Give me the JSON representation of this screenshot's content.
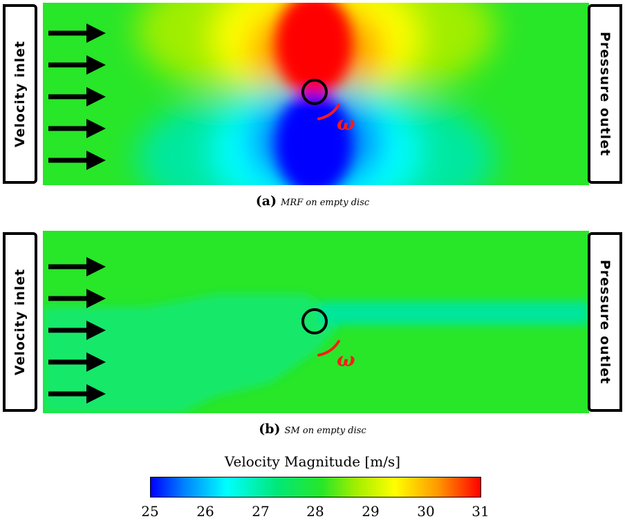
{
  "panels": [
    {
      "id": "a",
      "inlet_label": "Velocity inlet",
      "outlet_label": "Pressure outlet",
      "omega_label": "ω",
      "caption_tag": "(a)",
      "caption_text": "MRF on empty disc"
    },
    {
      "id": "b",
      "inlet_label": "Velocity inlet",
      "outlet_label": "Pressure outlet",
      "omega_label": "ω",
      "caption_tag": "(b)",
      "caption_text": "SM on empty disc"
    }
  ],
  "colorbar": {
    "title": "Velocity Magnitude [m/s]",
    "min": 25,
    "max": 31,
    "ticks": [
      "25",
      "26",
      "27",
      "28",
      "29",
      "30",
      "31"
    ],
    "colors": [
      "#0000ff",
      "#00ffff",
      "#28e628",
      "#ffff00",
      "#ff0000"
    ]
  }
}
